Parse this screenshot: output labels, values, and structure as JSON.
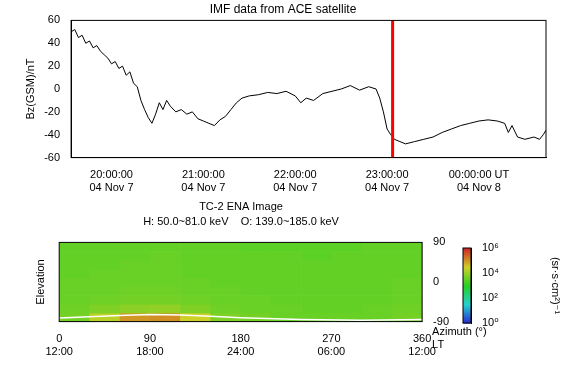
{
  "chart_data": [
    {
      "type": "line",
      "title": "IMF data from ACE satellite",
      "y_label": "Bz(GSM)/nT",
      "color": "#000000",
      "grid": false,
      "x": [
        19.56,
        19.6,
        19.64,
        19.68,
        19.72,
        19.76,
        19.8,
        19.84,
        19.88,
        19.92,
        19.96,
        20.0,
        20.04,
        20.08,
        20.12,
        20.16,
        20.2,
        20.24,
        20.28,
        20.32,
        20.36,
        20.4,
        20.44,
        20.48,
        20.52,
        20.56,
        20.6,
        20.64,
        20.7,
        20.76,
        20.82,
        20.88,
        20.94,
        21.0,
        21.06,
        21.12,
        21.18,
        21.24,
        21.3,
        21.36,
        21.42,
        21.5,
        21.6,
        21.7,
        21.8,
        21.9,
        22.0,
        22.06,
        22.12,
        22.2,
        22.3,
        22.4,
        22.5,
        22.6,
        22.7,
        22.8,
        22.88,
        22.92,
        22.96,
        23.0,
        23.04,
        23.08,
        23.14,
        23.2,
        23.3,
        23.4,
        23.5,
        23.6,
        23.7,
        23.8,
        23.9,
        24.0,
        24.1,
        24.2,
        24.28,
        24.32,
        24.36,
        24.42,
        24.5,
        24.6,
        24.66,
        24.7,
        24.73
      ],
      "values": [
        50,
        52,
        45,
        47,
        40,
        42,
        36,
        38,
        33,
        30,
        27,
        22,
        24,
        18,
        20,
        12,
        15,
        5,
        2,
        -10,
        -18,
        -25,
        -30,
        -22,
        -12,
        -18,
        -10,
        -15,
        -20,
        -18,
        -22,
        -20,
        -26,
        -28,
        -30,
        -32,
        -27,
        -24,
        -18,
        -12,
        -8,
        -6,
        -5,
        -3,
        -4,
        -2,
        -6,
        -12,
        -8,
        -10,
        -4,
        -2,
        0,
        3,
        -1,
        2,
        0,
        -8,
        -20,
        -35,
        -40,
        -44,
        -46,
        -48,
        -46,
        -44,
        -42,
        -38,
        -35,
        -32,
        -30,
        -28,
        -27,
        -28,
        -30,
        -38,
        -32,
        -42,
        -44,
        -42,
        -44,
        -40,
        -36
      ],
      "xlim": [
        19.56,
        24.73
      ],
      "xticks": [
        {
          "value": 20,
          "label": [
            "20:00:00",
            "04 Nov 7"
          ]
        },
        {
          "value": 21,
          "label": [
            "21:00:00",
            "04 Nov 7"
          ]
        },
        {
          "value": 22,
          "label": [
            "22:00:00",
            "04 Nov 7"
          ]
        },
        {
          "value": 23,
          "label": [
            "23:00:00",
            "04 Nov 7"
          ]
        },
        {
          "value": 24,
          "label": [
            "00:00:00 UT",
            "04 Nov 8"
          ]
        }
      ],
      "ylim": [
        -60,
        60
      ],
      "yticks": [
        -60,
        -40,
        -20,
        0,
        20,
        40,
        60
      ],
      "vertical_line": {
        "x": 23.06,
        "color": "#ff0000"
      }
    },
    {
      "type": "heatmap",
      "title": "TC-2 ENA Image",
      "subtitle": "H: 50.0~81.0 keV    O: 139.0~185.0 keV",
      "x_label": "Azimuth (°)",
      "lt_label": "LT",
      "y_label": "Elevation",
      "grid": false,
      "xlim": [
        0,
        360
      ],
      "xticks": [
        0,
        90,
        180,
        270,
        360
      ],
      "lt_ticks": [
        "12:00",
        "18:00",
        "24:00",
        "06:00",
        "12:00"
      ],
      "ylim": [
        -90,
        90
      ],
      "yticks": [
        -90,
        0,
        90
      ],
      "x_bins": [
        0,
        30,
        60,
        90,
        120,
        150,
        180,
        210,
        240,
        270,
        300,
        330,
        360
      ],
      "y_bins": [
        -90,
        -70,
        -50,
        -30,
        -10,
        10,
        30,
        50,
        70,
        90
      ],
      "cells": [
        [
          5000,
          20000,
          100000,
          120000,
          30000,
          6000,
          5000,
          4000,
          4000,
          4000,
          4000,
          5000
        ],
        [
          4500,
          6000,
          8000,
          9000,
          6000,
          4500,
          4000,
          4000,
          3500,
          3500,
          4000,
          4500
        ],
        [
          4000,
          4500,
          5000,
          5000,
          4500,
          4000,
          4000,
          3500,
          3500,
          3500,
          3500,
          4000
        ],
        [
          4000,
          4000,
          4500,
          4500,
          4000,
          4000,
          3500,
          3500,
          3500,
          3500,
          3500,
          4000
        ],
        [
          4000,
          4000,
          4000,
          4000,
          4000,
          3500,
          3500,
          3500,
          3500,
          3500,
          3500,
          4000
        ],
        [
          3500,
          4000,
          4000,
          4000,
          3500,
          3500,
          3500,
          3500,
          3500,
          3500,
          3500,
          3500
        ],
        [
          3500,
          3500,
          4000,
          4000,
          3500,
          3500,
          3500,
          3500,
          3500,
          3500,
          3500,
          3500
        ],
        [
          3500,
          3500,
          3500,
          4000,
          3500,
          3500,
          3500,
          3500,
          3000,
          3500,
          3500,
          3500
        ],
        [
          3500,
          3500,
          3500,
          3500,
          3500,
          3500,
          3000,
          3000,
          3000,
          3000,
          3500,
          3500
        ]
      ],
      "curve": {
        "color": "#ffffff",
        "x": [
          0,
          30,
          60,
          90,
          120,
          150,
          180,
          240,
          300,
          360
        ],
        "y": [
          -82,
          -79,
          -76,
          -74,
          -75,
          -78,
          -81,
          -85,
          -87,
          -85
        ]
      },
      "colorbar": {
        "label": "(sr·s·cm²)⁻¹",
        "log": true,
        "range": [
          1,
          1000000
        ],
        "ticks": [
          {
            "value": 1,
            "label": "10⁰"
          },
          {
            "value": 100,
            "label": "10²"
          },
          {
            "value": 10000,
            "label": "10⁴"
          },
          {
            "value": 1000000,
            "label": "10⁶"
          }
        ]
      }
    }
  ]
}
